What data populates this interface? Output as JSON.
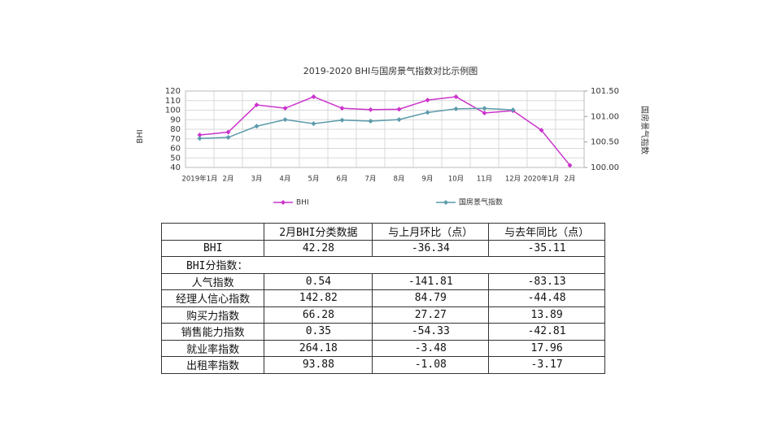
{
  "chart_data": {
    "type": "line",
    "title": "2019-2020 BHI与国房景气指数对比示例图",
    "y_label": "BHI",
    "y2_label": "国房景气指数",
    "categories": [
      "2019年1月",
      "2月",
      "3月",
      "4月",
      "5月",
      "6月",
      "7月",
      "8月",
      "9月",
      "10月",
      "11月",
      "12月",
      "2020年1月",
      "2月"
    ],
    "series": [
      {
        "name": "BHI",
        "color": "#cc33cc",
        "values": [
          74,
          77,
          105.5,
          102,
          114,
          102,
          100.5,
          101,
          110.5,
          114,
          97,
          99.5,
          79,
          42.28
        ]
      },
      {
        "name": "国房景气指数",
        "color": "#5b9bab",
        "axis": "y2",
        "values": [
          100.57,
          100.59,
          100.81,
          100.94,
          100.86,
          100.93,
          100.91,
          100.94,
          101.08,
          101.15,
          101.16,
          101.13,
          null,
          null
        ]
      }
    ],
    "ylim": [
      40,
      120
    ],
    "yticks": [
      40,
      50,
      60,
      70,
      80,
      90,
      100,
      110,
      120
    ],
    "y2lim": [
      100,
      101.5
    ],
    "y2ticks": [
      {
        "value": 100,
        "label": "100.00"
      },
      {
        "value": 100.5,
        "label": "100.50"
      },
      {
        "value": 101,
        "label": "101.00"
      },
      {
        "value": 101.5,
        "label": "101.50"
      }
    ],
    "grid": true,
    "legend": "bottom"
  },
  "table": {
    "header": [
      "2月BHI分类数据",
      "与上月环比（点）",
      "与去年同比（点）"
    ],
    "rows": [
      [
        "BHI",
        "42.28",
        "-36.34",
        "-35.11"
      ],
      [
        "BHI分指数："
      ],
      [
        "人气指数",
        "0.54",
        "-141.81",
        "-83.13"
      ],
      [
        "经理人信心指数",
        "142.82",
        "84.79",
        "-44.48"
      ],
      [
        "购买力指数",
        "66.28",
        "27.27",
        "13.89"
      ],
      [
        "销售能力指数",
        "0.35",
        "-54.33",
        "-42.81"
      ],
      [
        "就业率指数",
        "264.18",
        "-3.48",
        "17.96"
      ],
      [
        "出租率指数",
        "93.88",
        "-1.08",
        "-3.17"
      ]
    ]
  }
}
